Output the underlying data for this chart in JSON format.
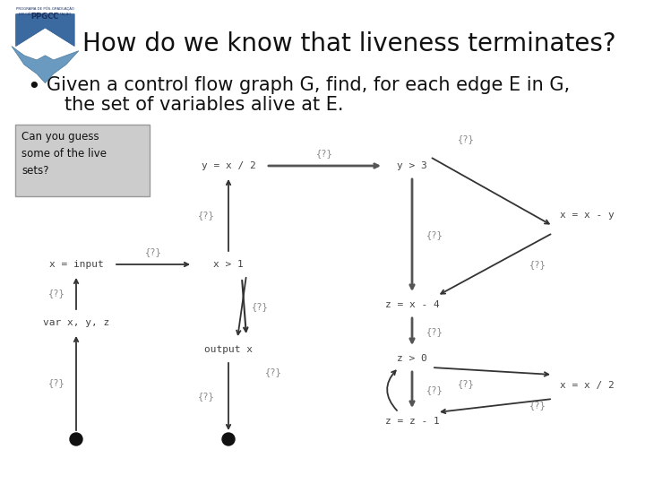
{
  "title": "How do we know that liveness terminates?",
  "bullet_line1": "Given a control flow graph G, find, for each edge E in G,",
  "bullet_line2": "the set of variables alive at E.",
  "box_text": "Can you guess\nsome of the live\nsets?",
  "slide_bg": "#ffffff",
  "title_fontsize": 20,
  "bullet_fontsize": 15,
  "graph_color": "#555555",
  "qmark_color": "#888888",
  "node_color": "#444444",
  "arrow_color": "#333333"
}
